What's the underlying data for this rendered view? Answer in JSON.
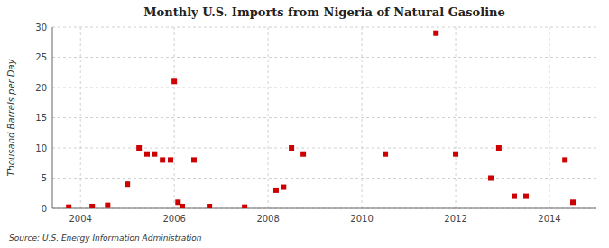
{
  "chart_data": {
    "type": "scatter",
    "title": "Monthly U.S. Imports from Nigeria of Natural Gasoline",
    "y_label": "Thousand Barrels per Day",
    "source": "Source: U.S. Energy Information Administration",
    "x": [
      2003.75,
      2004.25,
      2004.58,
      2005.0,
      2005.25,
      2005.42,
      2005.58,
      2005.75,
      2005.92,
      2006.0,
      2006.08,
      2006.17,
      2006.42,
      2006.75,
      2007.5,
      2008.17,
      2008.33,
      2008.5,
      2008.75,
      2010.5,
      2011.58,
      2012.0,
      2012.75,
      2012.92,
      2013.25,
      2013.5,
      2014.33,
      2014.5
    ],
    "values": [
      0.2,
      0.3,
      0.5,
      4.0,
      10.0,
      9.0,
      9.0,
      8.0,
      8.0,
      21.0,
      1.0,
      0.3,
      8.0,
      0.3,
      0.2,
      3.0,
      3.5,
      10.0,
      9.0,
      9.0,
      29.0,
      9.0,
      5.0,
      10.0,
      2.0,
      2.0,
      8.0,
      1.0
    ],
    "color": "#cc0000",
    "marker": "square",
    "xlim": [
      2003.4,
      2015.0
    ],
    "xticks": [
      2004,
      2006,
      2008,
      2010,
      2012,
      2014
    ],
    "ylim": [
      0,
      30
    ],
    "yticks": [
      0,
      5,
      10,
      15,
      20,
      25,
      30
    ],
    "grid": true
  }
}
